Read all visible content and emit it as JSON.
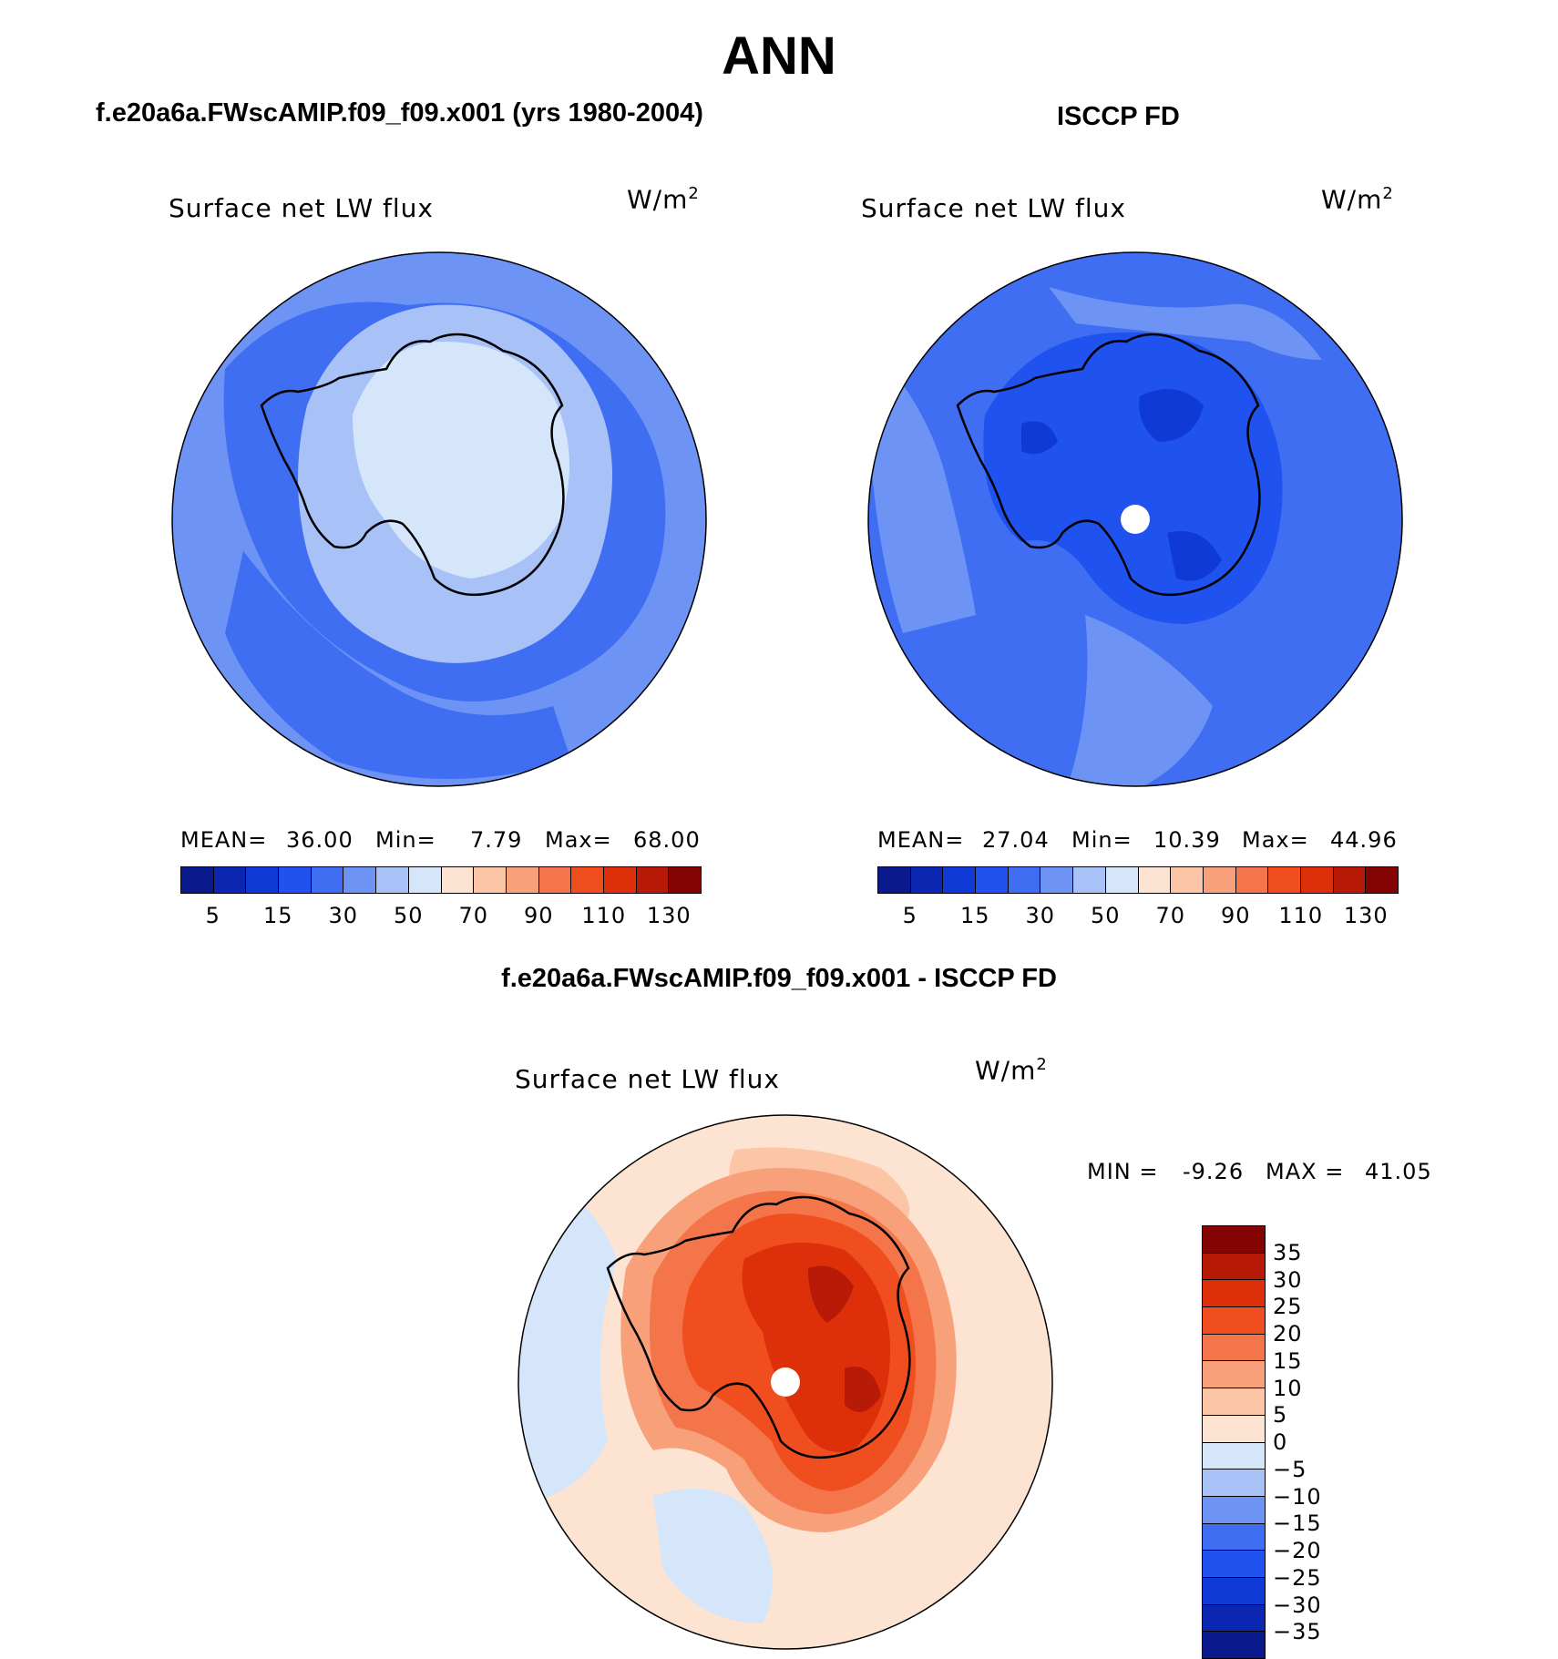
{
  "title": "ANN",
  "panels": [
    {
      "header": "f.e20a6a.FWscAMIP.f09_f09.x001 (yrs 1980-2004)",
      "field": "Surface net LW flux",
      "unit": "W/m",
      "unit_sup": "2",
      "stats": {
        "mean_label": "MEAN=",
        "mean": "36.00",
        "min_label": "Min=",
        "min": "7.79",
        "max_label": "Max=",
        "max": "68.00"
      }
    },
    {
      "header": "ISCCP FD",
      "field": "Surface net LW flux",
      "unit": "W/m",
      "unit_sup": "2",
      "stats": {
        "mean_label": "MEAN=",
        "mean": "27.04",
        "min_label": "Min=",
        "min": "10.39",
        "max_label": "Max=",
        "max": "44.96"
      }
    },
    {
      "header": "f.e20a6a.FWscAMIP.f09_f09.x001 - ISCCP FD",
      "field": "Surface net LW flux",
      "unit": "W/m",
      "unit_sup": "2",
      "stats": {
        "min_label": "MIN =",
        "min": "-9.26",
        "max_label": "MAX =",
        "max": "41.05"
      }
    }
  ],
  "colorbar_abs": {
    "colors": [
      "#0a1a8c",
      "#0b26b0",
      "#0f3ad6",
      "#1f52ef",
      "#3f6ef2",
      "#6d93f5",
      "#a8c2f8",
      "#d5e6fb",
      "#fde4d2",
      "#fbc5a6",
      "#f8a07a",
      "#f5754a",
      "#f04e1e",
      "#dd2f0a",
      "#b71a06",
      "#840404"
    ],
    "ticks": [
      "5",
      "15",
      "30",
      "50",
      "70",
      "90",
      "110",
      "130"
    ]
  },
  "colorbar_diff": {
    "colors": [
      "#840404",
      "#b71a06",
      "#dd2f0a",
      "#f04e1e",
      "#f5754a",
      "#f8a07a",
      "#fbc5a6",
      "#fde4d2",
      "#d5e6fb",
      "#a8c2f8",
      "#6d93f5",
      "#3f6ef2",
      "#1f52ef",
      "#0f3ad6",
      "#0b26b0",
      "#0a1a8c"
    ],
    "ticks": [
      "35",
      "30",
      "25",
      "20",
      "15",
      "10",
      "5",
      "0",
      "−5",
      "−10",
      "−15",
      "−20",
      "−25",
      "−30",
      "−35"
    ]
  },
  "map_colors": {
    "ocean_a": "#6d93f5",
    "coast_a": "#3f6ef2",
    "mid_a": "#a8c2f8",
    "inner_a": "#d5e6fb",
    "ocean_b": "#3f6ef2",
    "light_b": "#6d93f5",
    "mid_b": "#1f52ef",
    "deep_b": "#0f3ad6",
    "bg_c": "#fde4d2",
    "light_c": "#fbc5a6",
    "blue_c": "#d5e6fb",
    "r1_c": "#f8a07a",
    "r2_c": "#f5754a",
    "r3_c": "#f04e1e",
    "r4_c": "#dd2f0a",
    "r5_c": "#b71a06",
    "coastline": "#000000"
  }
}
